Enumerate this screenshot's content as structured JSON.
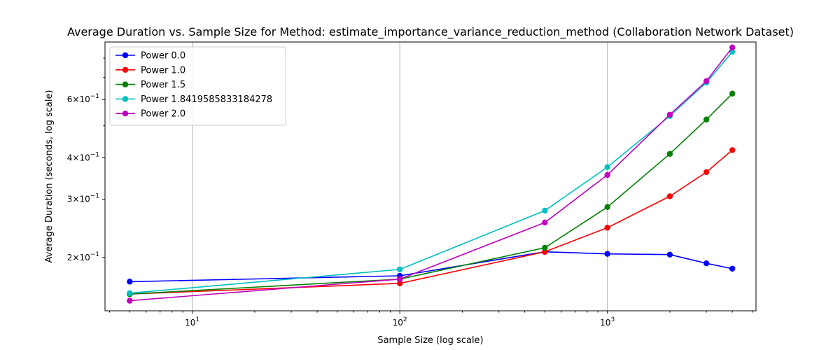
{
  "chart_data": {
    "type": "line",
    "title": "Average Duration vs. Sample Size for Method: estimate_importance_variance_reduction_method (Collaboration Network Dataset)",
    "xlabel": "Sample Size (log scale)",
    "ylabel": "Average Duration (seconds, log scale)",
    "xscale": "log",
    "yscale": "log",
    "xlim": [
      3.8,
      5200
    ],
    "ylim": [
      0.138,
      0.895
    ],
    "grid": "vertical major gridlines",
    "legend_position": "top-left",
    "x": [
      5,
      100,
      500,
      1000,
      2000,
      3000,
      4000
    ],
    "x_ticks": [
      {
        "value": 10,
        "base": "10",
        "exp": "1"
      },
      {
        "value": 100,
        "base": "10",
        "exp": "2"
      },
      {
        "value": 1000,
        "base": "10",
        "exp": "3"
      }
    ],
    "y_ticks": [
      {
        "value": 0.2,
        "mant": "2",
        "base": "×10",
        "exp": "−1"
      },
      {
        "value": 0.3,
        "mant": "3",
        "base": "×10",
        "exp": "−1"
      },
      {
        "value": 0.4,
        "mant": "4",
        "base": "×10",
        "exp": "−1"
      },
      {
        "value": 0.6,
        "mant": "6",
        "base": "×10",
        "exp": "−1"
      }
    ],
    "series": [
      {
        "name": "Power 0.0",
        "color": "#0000ff",
        "values": [
          0.169,
          0.176,
          0.208,
          0.205,
          0.204,
          0.192,
          0.185
        ]
      },
      {
        "name": "Power 1.0",
        "color": "#ff0000",
        "values": [
          0.155,
          0.167,
          0.208,
          0.246,
          0.306,
          0.362,
          0.422
        ]
      },
      {
        "name": "Power 1.5",
        "color": "#008000",
        "values": [
          0.155,
          0.172,
          0.214,
          0.284,
          0.411,
          0.522,
          0.625
        ]
      },
      {
        "name": "Power 1.8419585833184278",
        "color": "#00bfbf",
        "values": [
          0.156,
          0.184,
          0.277,
          0.375,
          0.535,
          0.675,
          0.836
        ]
      },
      {
        "name": "Power 2.0",
        "color": "#bf00bf",
        "values": [
          0.148,
          0.172,
          0.255,
          0.355,
          0.54,
          0.682,
          0.862
        ]
      }
    ]
  }
}
